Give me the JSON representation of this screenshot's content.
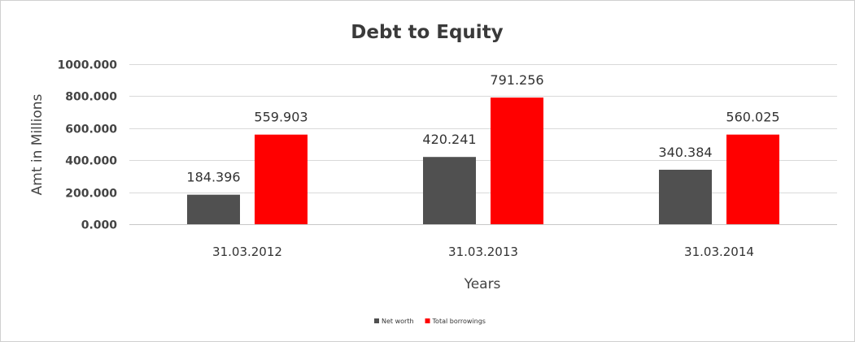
{
  "chart_data": {
    "type": "bar",
    "title": "Debt to Equity",
    "xlabel": "Years",
    "ylabel": "Amt in Millions",
    "categories": [
      "31.03.2012",
      "31.03.2013",
      "31.03.2014"
    ],
    "series": [
      {
        "name": "Net worth",
        "color": "#505050",
        "values": [
          184.396,
          420.241,
          340.384
        ],
        "labels": [
          "184.396",
          "420.241",
          "340.384"
        ]
      },
      {
        "name": "Total borrowings",
        "color": "#ff0000",
        "values": [
          559.903,
          791.256,
          560.025
        ],
        "labels": [
          "559.903",
          "791.256",
          "560.025"
        ]
      }
    ],
    "ylim": [
      0,
      1000
    ],
    "yticks": [
      0,
      200,
      400,
      600,
      800,
      1000
    ],
    "ytick_labels": [
      "0.000",
      "200.000",
      "400.000",
      "600.000",
      "800.000",
      "1000.000"
    ],
    "grid": true,
    "legend_position": "bottom"
  }
}
